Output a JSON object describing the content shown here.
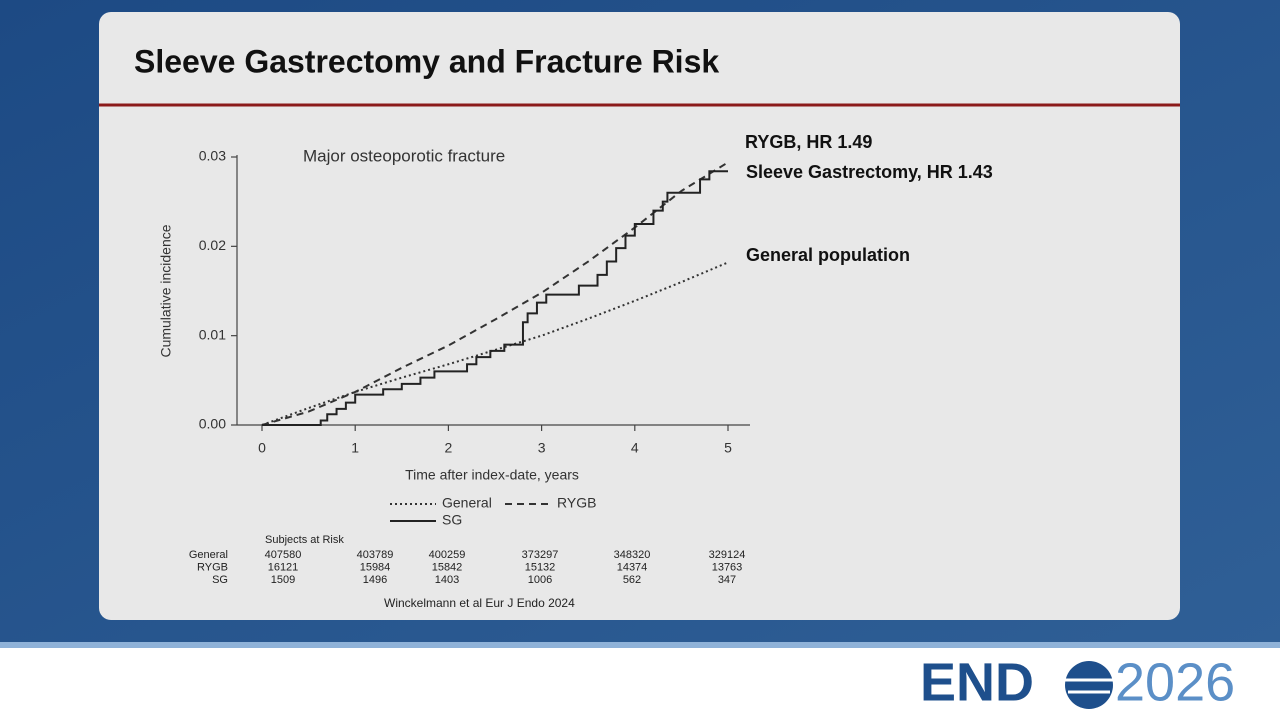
{
  "slide_title": "Sleeve Gastrectomy and Fracture Risk",
  "chart_data": {
    "type": "line",
    "title": "Major osteoporotic fracture",
    "x_label": "Time after index-date, years",
    "y_label": "Cumulative incidence",
    "xlim": [
      0,
      5
    ],
    "xticks": [
      0,
      1,
      2,
      3,
      4,
      5
    ],
    "ylim": [
      0,
      0.03
    ],
    "yticks": [
      {
        "value": 0,
        "label": "0.00"
      },
      {
        "value": 0.01,
        "label": "0.01"
      },
      {
        "value": 0.02,
        "label": "0.02"
      },
      {
        "value": 0.03,
        "label": "0.03"
      }
    ],
    "series": [
      {
        "name": "General",
        "color": "#333333",
        "dash": "dotted",
        "x": [
          0,
          0.5,
          1,
          1.5,
          2,
          2.5,
          3,
          3.5,
          4,
          4.5,
          5
        ],
        "values": [
          0,
          0.0019,
          0.0037,
          0.0053,
          0.0068,
          0.0084,
          0.01,
          0.0119,
          0.0139,
          0.016,
          0.0182
        ]
      },
      {
        "name": "RYGB",
        "color": "#333333",
        "dash": "dashed",
        "x": [
          0,
          0.5,
          1,
          1.5,
          2,
          2.5,
          3,
          3.5,
          4,
          4.5,
          5
        ],
        "values": [
          0,
          0.0015,
          0.0037,
          0.0064,
          0.0089,
          0.0118,
          0.0148,
          0.0183,
          0.0221,
          0.0262,
          0.0294
        ]
      },
      {
        "name": "SG",
        "color": "#222222",
        "dash": "solid",
        "step": "post",
        "x": [
          0,
          0.63,
          0.7,
          0.8,
          0.9,
          1.0,
          1.3,
          1.5,
          1.7,
          1.85,
          2.2,
          2.3,
          2.45,
          2.6,
          2.8,
          2.85,
          2.95,
          3.05,
          3.4,
          3.6,
          3.7,
          3.8,
          3.9,
          4.0,
          4.2,
          4.3,
          4.35,
          4.7,
          4.8,
          5.0
        ],
        "values": [
          0,
          0.0005,
          0.0012,
          0.0018,
          0.0025,
          0.0034,
          0.004,
          0.0046,
          0.0053,
          0.006,
          0.0068,
          0.0076,
          0.0083,
          0.009,
          0.0115,
          0.0125,
          0.0137,
          0.0146,
          0.0156,
          0.0168,
          0.0183,
          0.0198,
          0.0212,
          0.0225,
          0.024,
          0.025,
          0.026,
          0.0275,
          0.0284,
          0.0284
        ]
      }
    ],
    "annotations": [
      "RYGB, HR 1.49",
      "Sleeve Gastrectomy, HR 1.43",
      "General population"
    ]
  },
  "risk_table": {
    "title": "Subjects at Risk",
    "rows": [
      {
        "label": "General",
        "values": [
          407580,
          403789,
          400259,
          373297,
          348320,
          329124
        ]
      },
      {
        "label": "RYGB",
        "values": [
          16121,
          15984,
          15842,
          15132,
          14374,
          13763
        ]
      },
      {
        "label": "SG",
        "values": [
          1509,
          1496,
          1403,
          1006,
          562,
          347
        ]
      }
    ]
  },
  "citation": "Winckelmann et al Eur J Endo 2024",
  "logo": {
    "left": "END",
    "right": "2026"
  }
}
